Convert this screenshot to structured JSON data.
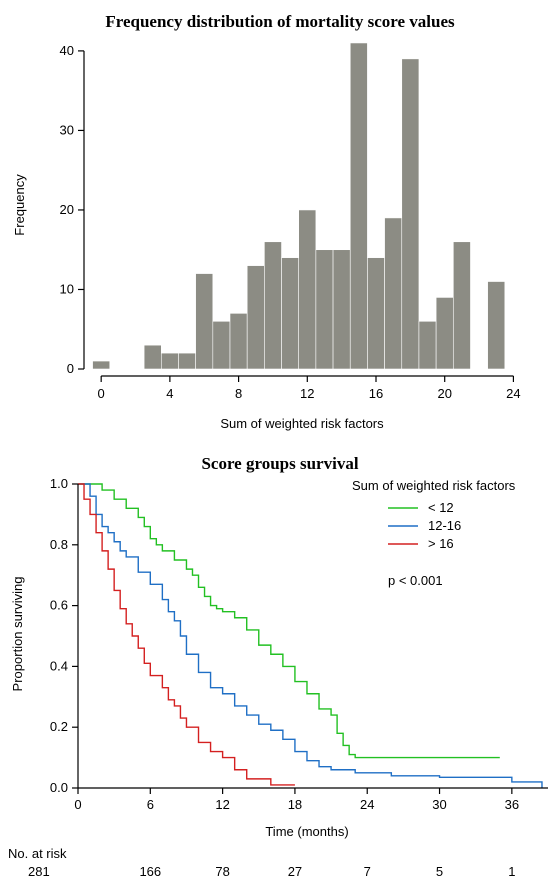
{
  "chart_data": [
    {
      "type": "bar",
      "title": "Frequency distribution of mortality score values",
      "xlabel": "Sum of weighted risk factors",
      "ylabel": "Frequency",
      "xlim": [
        -1,
        24.5
      ],
      "ylim": [
        0,
        42
      ],
      "xticks": [
        0,
        4,
        8,
        12,
        16,
        20,
        24
      ],
      "yticks": [
        0,
        10,
        20,
        30,
        40
      ],
      "bar_color": "#8c8c84",
      "x": [
        0,
        3,
        4,
        5,
        6,
        7,
        8,
        9,
        10,
        11,
        12,
        13,
        14,
        15,
        16,
        17,
        18,
        19,
        20,
        21,
        23
      ],
      "values": [
        1,
        3,
        2,
        2,
        12,
        6,
        7,
        13,
        16,
        14,
        20,
        15,
        15,
        41,
        14,
        19,
        39,
        6,
        9,
        16,
        11
      ]
    },
    {
      "type": "line",
      "title": "Score groups survival",
      "xlabel": "Time (months)",
      "ylabel": "Proportion surviving",
      "xlim": [
        0,
        39
      ],
      "ylim": [
        0,
        1.0
      ],
      "xticks": [
        0,
        6,
        12,
        18,
        24,
        30,
        36
      ],
      "yticks": [
        0.0,
        0.2,
        0.4,
        0.6,
        0.8,
        1.0
      ],
      "legend_title": "Sum of weighted risk factors",
      "legend_position": "top-right",
      "annotation": "p < 0.001",
      "series": [
        {
          "name": "< 12",
          "color": "#22c022",
          "x": [
            0,
            2,
            3,
            4,
            5,
            5.5,
            6,
            6.5,
            7,
            8,
            9,
            9.5,
            10,
            10.5,
            11,
            11.5,
            12,
            13,
            14,
            15,
            16,
            17,
            18,
            19,
            20,
            21,
            21.5,
            22,
            22.5,
            23,
            35
          ],
          "y": [
            1.0,
            0.98,
            0.95,
            0.92,
            0.89,
            0.86,
            0.82,
            0.8,
            0.78,
            0.75,
            0.72,
            0.7,
            0.66,
            0.63,
            0.6,
            0.59,
            0.58,
            0.56,
            0.52,
            0.47,
            0.44,
            0.4,
            0.35,
            0.31,
            0.26,
            0.24,
            0.18,
            0.14,
            0.11,
            0.1,
            0.1
          ]
        },
        {
          "name": "12-16",
          "color": "#1f6fc5",
          "x": [
            0,
            1,
            1.5,
            2,
            2.5,
            3,
            3.5,
            4,
            5,
            6,
            7,
            7.5,
            8,
            8.5,
            9,
            10,
            11,
            12,
            13,
            14,
            15,
            16,
            17,
            18,
            19,
            20,
            21,
            23,
            26,
            30,
            36,
            38.5
          ],
          "y": [
            1.0,
            0.96,
            0.9,
            0.86,
            0.84,
            0.81,
            0.78,
            0.76,
            0.71,
            0.67,
            0.62,
            0.58,
            0.55,
            0.5,
            0.44,
            0.38,
            0.33,
            0.31,
            0.27,
            0.24,
            0.21,
            0.19,
            0.16,
            0.12,
            0.09,
            0.07,
            0.06,
            0.05,
            0.04,
            0.035,
            0.02,
            0.0
          ]
        },
        {
          "name": "> 16",
          "color": "#d42020",
          "x": [
            0,
            0.5,
            1,
            1.5,
            2,
            2.5,
            3,
            3.5,
            4,
            4.5,
            5,
            5.5,
            6,
            7,
            7.5,
            8,
            8.5,
            9,
            10,
            11,
            12,
            13,
            14,
            16,
            18
          ],
          "y": [
            1.0,
            0.95,
            0.9,
            0.84,
            0.78,
            0.72,
            0.65,
            0.59,
            0.54,
            0.5,
            0.46,
            0.41,
            0.37,
            0.33,
            0.29,
            0.27,
            0.23,
            0.2,
            0.15,
            0.12,
            0.1,
            0.06,
            0.03,
            0.01,
            0.01
          ]
        }
      ],
      "risk_table": {
        "label": "No. at risk",
        "times": [
          0,
          6,
          12,
          18,
          24,
          30,
          36
        ],
        "counts": [
          "281",
          "166",
          "78",
          "27",
          "7",
          "5",
          "1"
        ]
      }
    }
  ]
}
